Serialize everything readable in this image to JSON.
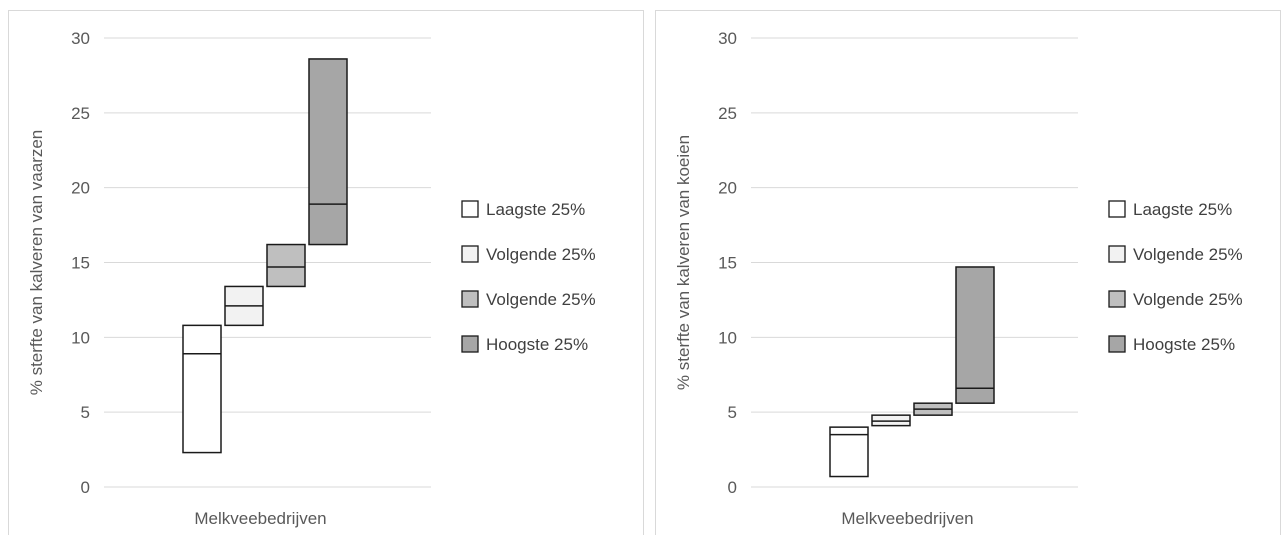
{
  "chart_data": [
    {
      "type": "box",
      "ylabel": "% sterfte van kalveren van vaarzen",
      "xlabel": "Melkveebedrijven",
      "ylim": [
        0,
        30
      ],
      "yticks": [
        0,
        5,
        10,
        15,
        20,
        25,
        30
      ],
      "grid": true,
      "legend_position": "right",
      "series": [
        {
          "name": "Laagste 25%",
          "color": "#ffffff",
          "low": 2.3,
          "high": 10.8,
          "median": 8.9
        },
        {
          "name": "Volgende 25%",
          "color": "#f2f2f2",
          "low": 10.8,
          "high": 13.4,
          "median": 12.1
        },
        {
          "name": "Volgende 25%",
          "color": "#bfbfbf",
          "low": 13.4,
          "high": 16.2,
          "median": 14.7
        },
        {
          "name": "Hoogste 25%",
          "color": "#a6a6a6",
          "low": 16.2,
          "high": 28.6,
          "median": 18.9
        }
      ]
    },
    {
      "type": "box",
      "ylabel": "% sterfte van kalveren van koeien",
      "xlabel": "Melkveebedrijven",
      "ylim": [
        0,
        30
      ],
      "yticks": [
        0,
        5,
        10,
        15,
        20,
        25,
        30
      ],
      "grid": true,
      "legend_position": "right",
      "series": [
        {
          "name": "Laagste 25%",
          "color": "#ffffff",
          "low": 0.7,
          "high": 4.0,
          "median": 3.5
        },
        {
          "name": "Volgende 25%",
          "color": "#f2f2f2",
          "low": 4.1,
          "high": 4.8,
          "median": 4.4
        },
        {
          "name": "Volgende 25%",
          "color": "#bfbfbf",
          "low": 4.8,
          "high": 5.6,
          "median": 5.2
        },
        {
          "name": "Hoogste 25%",
          "color": "#a6a6a6",
          "low": 5.6,
          "high": 14.7,
          "median": 6.6
        }
      ]
    }
  ]
}
